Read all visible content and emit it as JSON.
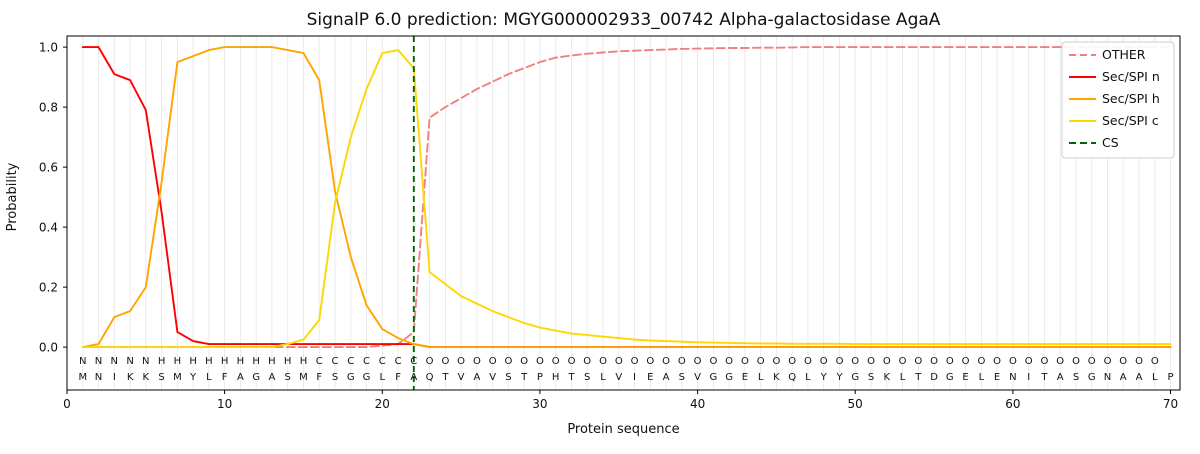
{
  "chart_data": {
    "type": "line",
    "title": "SignalP 6.0 prediction: MGYG000002933_00742 Alpha-galactosidase AgaA",
    "xlabel": "Protein sequence",
    "ylabel": "Probability",
    "xlim": [
      0,
      70.6
    ],
    "ylim": [
      -0.143,
      1.037
    ],
    "grid": "vertical gridline at every residue position",
    "legend_position": "upper right",
    "x_ticks": [
      0,
      10,
      20,
      30,
      40,
      50,
      60,
      70
    ],
    "x_tick_labels": [
      "0",
      "10",
      "20",
      "30",
      "40",
      "50",
      "60",
      "70"
    ],
    "y_ticks": [
      0.0,
      0.2,
      0.4,
      0.6,
      0.8,
      1.0
    ],
    "y_tick_labels": [
      "0.0",
      "0.2",
      "0.4",
      "0.6",
      "0.8",
      "1.0"
    ],
    "x": [
      1,
      2,
      3,
      4,
      5,
      6,
      7,
      8,
      9,
      10,
      11,
      12,
      13,
      14,
      15,
      16,
      17,
      18,
      19,
      20,
      21,
      22,
      23,
      24,
      25,
      26,
      27,
      28,
      29,
      30,
      31,
      32,
      33,
      34,
      35,
      36,
      37,
      38,
      39,
      40,
      41,
      42,
      43,
      44,
      45,
      46,
      47,
      48,
      49,
      50,
      51,
      52,
      53,
      54,
      55,
      56,
      57,
      58,
      59,
      60,
      61,
      62,
      63,
      64,
      65,
      66,
      67,
      68,
      69,
      70
    ],
    "series": [
      {
        "name": "OTHER",
        "color": "#f08080",
        "dashed": true,
        "values": [
          0,
          0,
          0,
          0,
          0,
          0,
          0,
          0,
          0,
          0,
          0,
          0,
          0,
          0,
          0,
          0,
          0,
          0,
          0,
          0.005,
          0.01,
          0.05,
          0.765,
          0.8,
          0.83,
          0.86,
          0.885,
          0.91,
          0.93,
          0.95,
          0.965,
          0.972,
          0.978,
          0.982,
          0.986,
          0.988,
          0.99,
          0.992,
          0.994,
          0.995,
          0.996,
          0.997,
          0.997,
          0.998,
          0.998,
          0.999,
          1.0,
          1.0,
          1.0,
          1.0,
          1.0,
          1.0,
          1.0,
          1.0,
          1.0,
          1.0,
          1.0,
          1.0,
          1.0,
          1.0,
          1.0,
          1.0,
          1.0,
          1.0,
          1.0,
          1.0,
          1.0,
          1.0,
          1.0,
          1.0
        ]
      },
      {
        "name": "Sec/SPI n",
        "color": "#ff0000",
        "dashed": false,
        "values": [
          1.0,
          1.0,
          0.91,
          0.89,
          0.79,
          0.45,
          0.05,
          0.02,
          0.01,
          0.01,
          0.01,
          0.01,
          0.01,
          0.01,
          0.01,
          0.01,
          0.01,
          0.01,
          0.01,
          0.01,
          0.01,
          0.01,
          0,
          0,
          0,
          0,
          0,
          0,
          0,
          0,
          0,
          0,
          0,
          0,
          0,
          0,
          0,
          0,
          0,
          0,
          0,
          0,
          0,
          0,
          0,
          0,
          0,
          0,
          0,
          0,
          0,
          0,
          0,
          0,
          0,
          0,
          0,
          0,
          0,
          0,
          0,
          0,
          0,
          0,
          0,
          0,
          0,
          0,
          0,
          0
        ]
      },
      {
        "name": "Sec/SPI h",
        "color": "#ffa500",
        "dashed": false,
        "values": [
          0,
          0.01,
          0.1,
          0.12,
          0.2,
          0.55,
          0.95,
          0.97,
          0.99,
          1.0,
          1.0,
          1.0,
          1.0,
          0.99,
          0.98,
          0.89,
          0.52,
          0.3,
          0.14,
          0.06,
          0.03,
          0.01,
          0,
          0,
          0,
          0,
          0,
          0,
          0,
          0,
          0,
          0,
          0,
          0,
          0,
          0,
          0,
          0,
          0,
          0,
          0,
          0,
          0,
          0,
          0,
          0,
          0,
          0,
          0,
          0,
          0,
          0,
          0,
          0,
          0,
          0,
          0,
          0,
          0,
          0,
          0,
          0,
          0,
          0,
          0,
          0,
          0,
          0,
          0,
          0
        ]
      },
      {
        "name": "Sec/SPI c",
        "color": "#ffd700",
        "dashed": false,
        "values": [
          0,
          0,
          0,
          0,
          0,
          0,
          0,
          0,
          0,
          0,
          0,
          0,
          0,
          0.01,
          0.025,
          0.09,
          0.48,
          0.7,
          0.86,
          0.98,
          0.99,
          0.93,
          0.25,
          0.21,
          0.17,
          0.145,
          0.12,
          0.1,
          0.08,
          0.065,
          0.055,
          0.045,
          0.04,
          0.035,
          0.03,
          0.025,
          0.022,
          0.02,
          0.018,
          0.016,
          0.015,
          0.014,
          0.013,
          0.012,
          0.012,
          0.011,
          0.011,
          0.011,
          0.011,
          0.01,
          0.01,
          0.01,
          0.01,
          0.01,
          0.01,
          0.01,
          0.01,
          0.01,
          0.01,
          0.01,
          0.01,
          0.01,
          0.01,
          0.01,
          0.01,
          0.01,
          0.01,
          0.01,
          0.01,
          0.01
        ]
      }
    ],
    "cs": {
      "label": "CS",
      "position": 22,
      "color": "#006400",
      "dashed": true
    },
    "sequence": "MNIKKSMYLFAGASMFSGGLFAQTVAVSTPHTSLVIEASVGGELKQLYYGSKLTDGELENITASGNAALP",
    "region_labels": "NNNNNHHHHHHHHHHCCCCCCCOOOOOOOOOOOOOOOOOOOOOOOOOOOOOOOOOOOOOOOOOOOOOOO",
    "region_colors": {
      "N": "#ff0000",
      "H": "#ffa500",
      "C": "#ffd700",
      "O": "#8c8c8c"
    },
    "residue_color": "#111111",
    "legend": [
      "OTHER",
      "Sec/SPI n",
      "Sec/SPI h",
      "Sec/SPI c",
      "CS"
    ]
  }
}
